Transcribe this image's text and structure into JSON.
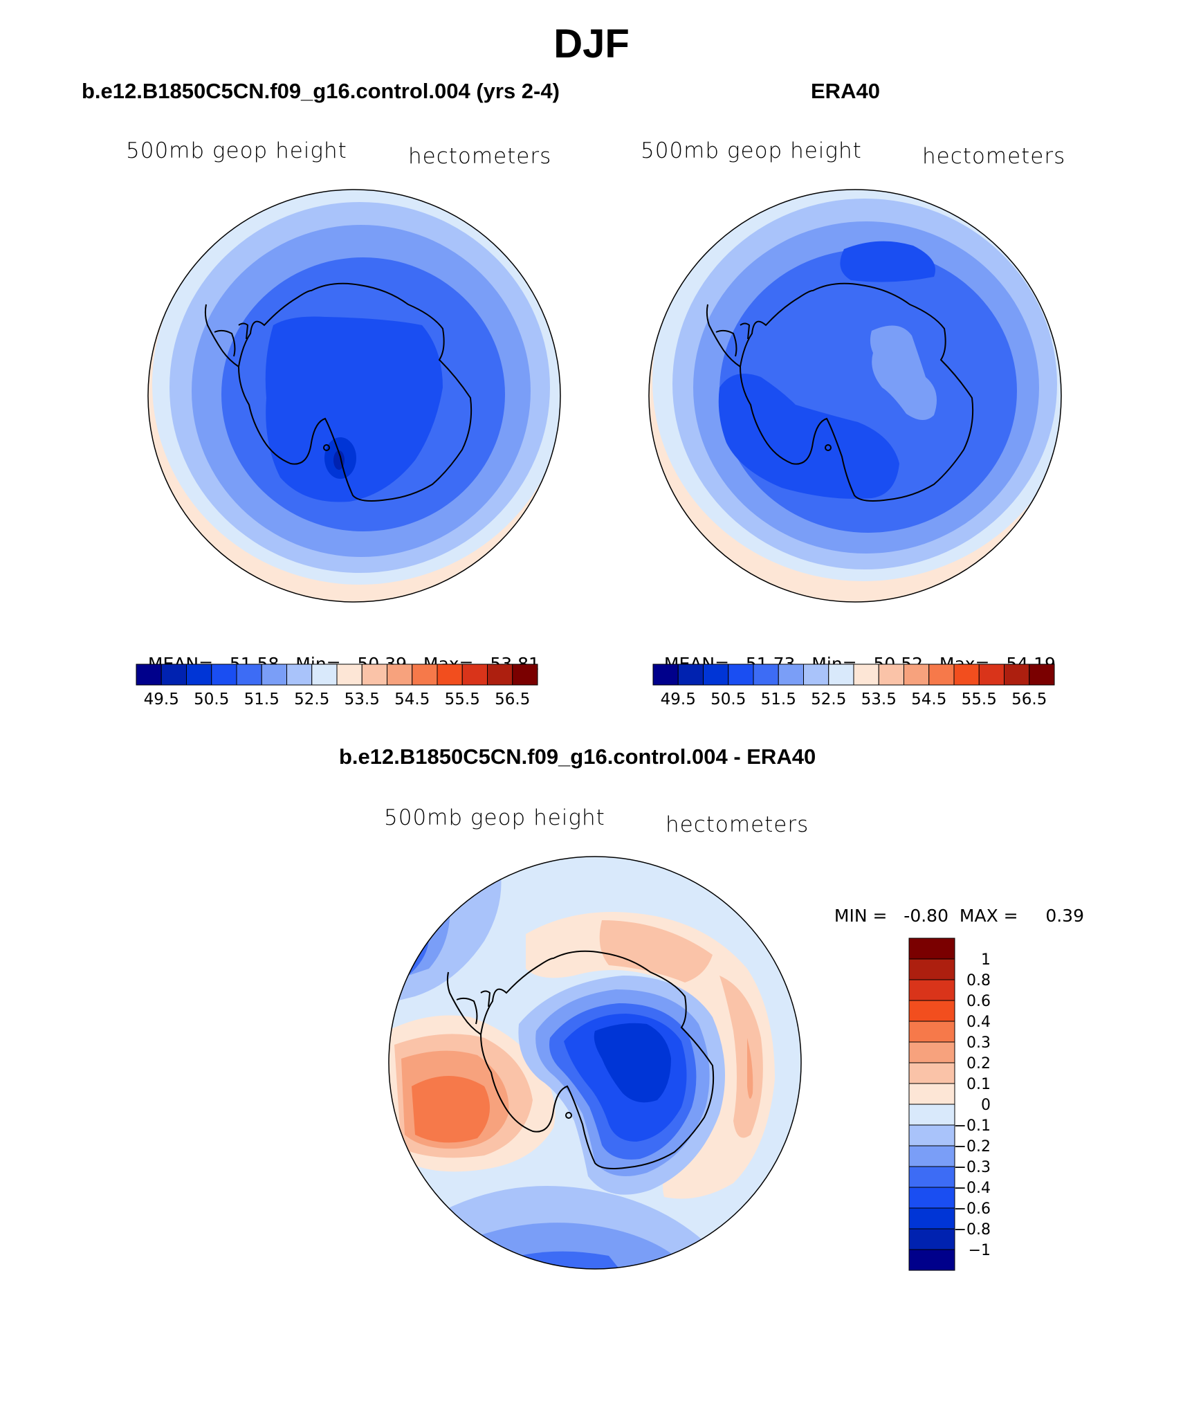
{
  "page": {
    "title": "DJF"
  },
  "panels": [
    {
      "id": "model",
      "title": "b.e12.B1850C5CN.f09_g16.control.004 (yrs 2-4)",
      "field_label": "500mb geop height",
      "units_label": "hectometers",
      "stats": {
        "mean_label": "MEAN=",
        "mean": "51.58",
        "min_label": "Min=",
        "min": "50.39",
        "max_label": "Max=",
        "max": "53.81"
      }
    },
    {
      "id": "obs",
      "title": "ERA40",
      "field_label": "500mb geop height",
      "units_label": "hectometers",
      "stats": {
        "mean_label": "MEAN=",
        "mean": "51.73",
        "min_label": "Min=",
        "min": "50.52",
        "max_label": "Max=",
        "max": "54.19"
      }
    },
    {
      "id": "diff",
      "title": "b.e12.B1850C5CN.f09_g16.control.004 - ERA40",
      "field_label": "500mb geop height",
      "units_label": "hectometers",
      "stats": {
        "min_label": "MIN =",
        "min": "-0.80",
        "max_label": "MAX =",
        "max": "0.39"
      }
    }
  ],
  "colorbars": {
    "absolute": {
      "colors": [
        "#00008b",
        "#0022b0",
        "#0035d6",
        "#1a4ef2",
        "#3d6cf5",
        "#7a9ef7",
        "#a9c3fa",
        "#d9e9fb",
        "#fde6d6",
        "#fac3a8",
        "#f7a27d",
        "#f6794a",
        "#f24e1e",
        "#d9341a",
        "#ad1f0f",
        "#7a0000"
      ],
      "tick_labels": [
        "49.5",
        "50.5",
        "51.5",
        "52.5",
        "53.5",
        "54.5",
        "55.5",
        "56.5"
      ]
    },
    "difference": {
      "colors": [
        "#7a0000",
        "#ad1f0f",
        "#d9341a",
        "#f24e1e",
        "#f6794a",
        "#f7a27d",
        "#fac3a8",
        "#fde6d6",
        "#d9e9fb",
        "#a9c3fa",
        "#7a9ef7",
        "#3d6cf5",
        "#1a4ef2",
        "#0035d6",
        "#0022b0",
        "#00008b"
      ],
      "tick_labels": [
        "1",
        "0.8",
        "0.6",
        "0.4",
        "0.3",
        "0.2",
        "0.1",
        "0",
        "−0.1",
        "−0.2",
        "−0.3",
        "−0.4",
        "−0.6",
        "−0.8",
        "−1"
      ]
    }
  },
  "colors": {
    "background": "#ffffff",
    "coastline": "#000000",
    "map_border": "#000000"
  }
}
